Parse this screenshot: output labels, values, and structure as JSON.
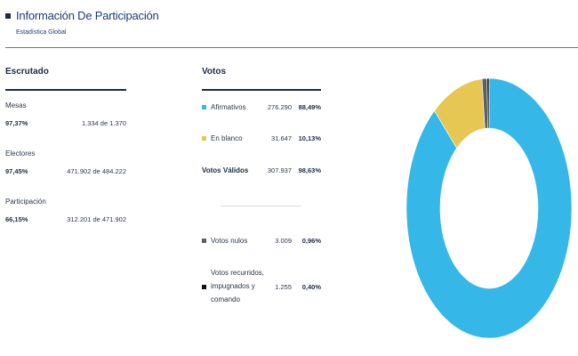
{
  "header": {
    "title": "Información De Participación",
    "subtitle": "Estadística Global"
  },
  "escrutado": {
    "title": "Escrutado",
    "rows": [
      {
        "label": "Mesas",
        "pct": "97,37%",
        "value": "1.334 de 1.370"
      },
      {
        "label": "Electores",
        "pct": "97,45%",
        "value": "471.902 de 484.222"
      },
      {
        "label": "Participación",
        "pct": "66,15%",
        "value": "312.201 de 471.902"
      }
    ]
  },
  "votos": {
    "title": "Votos",
    "afirmativos": {
      "label": "Afirmativos",
      "num": "276.290",
      "pct": "88,49%",
      "color": "#35b7e8"
    },
    "blanco": {
      "label": "En blanco",
      "num": "31.647",
      "pct": "10,13%",
      "color": "#e6c754"
    },
    "validos": {
      "label": "Votos Válidos",
      "num": "307.937",
      "pct": "98,63%"
    },
    "nulos": {
      "label": "Votos nulos",
      "num": "3.009",
      "pct": "0,96%",
      "color": "#5b5f66"
    },
    "recurridos": {
      "label": "Votos recurridos, impugnados y comando",
      "num": "1.255",
      "pct": "0,40%",
      "color": "#141414"
    }
  },
  "chart_data": {
    "type": "pie",
    "donut": true,
    "categories": [
      "Afirmativos",
      "En blanco",
      "Votos nulos",
      "Votos recurridos, impugnados y comando"
    ],
    "values": [
      88.49,
      10.13,
      0.96,
      0.4
    ],
    "colors": [
      "#35b7e8",
      "#e6c754",
      "#5b5f66",
      "#141414"
    ]
  }
}
